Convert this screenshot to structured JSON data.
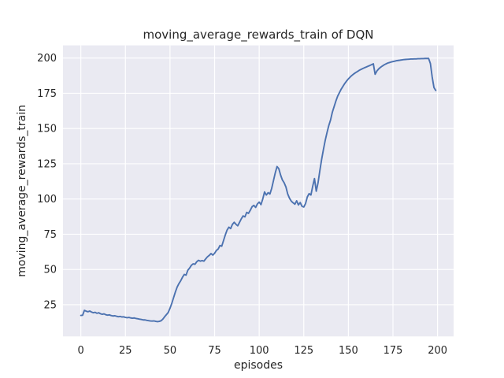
{
  "chart_data": {
    "type": "line",
    "title": "moving_average_rewards_train of DQN",
    "xlabel": "episodes",
    "ylabel": "moving_average_rewards_train",
    "xlim": [
      -10,
      209
    ],
    "ylim": [
      2.5,
      209
    ],
    "xticks": [
      0,
      25,
      50,
      75,
      100,
      125,
      150,
      175,
      200
    ],
    "yticks": [
      25,
      50,
      75,
      100,
      125,
      150,
      175,
      200
    ],
    "grid": true,
    "legend": false,
    "series": [
      {
        "name": "moving_average_rewards_train",
        "x_start": 0,
        "x_step": 1,
        "values": [
          17.4,
          17.5,
          21.0,
          20.4,
          20.0,
          20.5,
          19.8,
          19.3,
          19.6,
          18.9,
          19.3,
          18.6,
          18.2,
          18.5,
          17.9,
          17.6,
          17.8,
          17.3,
          17.0,
          17.2,
          16.8,
          16.5,
          16.7,
          16.3,
          16.4,
          16.0,
          15.8,
          16.0,
          15.6,
          15.4,
          15.6,
          15.2,
          15.0,
          14.7,
          14.5,
          14.2,
          14.2,
          13.9,
          13.7,
          13.5,
          13.4,
          13.5,
          13.2,
          13.0,
          13.2,
          13.6,
          14.8,
          16.5,
          18.0,
          19.5,
          22.5,
          26.0,
          30.0,
          34.0,
          37.5,
          40.0,
          42.0,
          44.5,
          46.5,
          46.0,
          49.5,
          51.0,
          53.0,
          54.0,
          53.7,
          55.5,
          56.5,
          55.9,
          56.3,
          55.9,
          57.5,
          59.0,
          60.0,
          61.3,
          60.2,
          61.5,
          63.5,
          64.5,
          67.0,
          66.5,
          70.5,
          74.5,
          78.0,
          80.0,
          79.0,
          82.0,
          83.5,
          82.0,
          81.0,
          83.5,
          86.0,
          88.0,
          87.3,
          90.5,
          89.8,
          92.0,
          94.5,
          95.5,
          94.0,
          96.5,
          97.8,
          96.0,
          100.0,
          105.0,
          102.8,
          104.5,
          103.5,
          107.5,
          113.0,
          118.5,
          123.0,
          121.5,
          117.0,
          113.5,
          111.5,
          108.5,
          103.5,
          100.5,
          98.5,
          97.3,
          96.3,
          98.7,
          95.8,
          97.5,
          94.8,
          94.3,
          96.8,
          101.5,
          103.8,
          102.8,
          109.0,
          114.5,
          105.5,
          111.5,
          120.0,
          128.0,
          135.0,
          141.5,
          147.0,
          152.0,
          156.0,
          161.5,
          165.5,
          169.5,
          173.0,
          175.5,
          178.0,
          180.0,
          182.0,
          183.7,
          185.2,
          186.5,
          187.7,
          188.7,
          189.6,
          190.4,
          191.2,
          191.9,
          192.5,
          193.1,
          193.6,
          194.2,
          194.7,
          195.3,
          195.9,
          188.5,
          190.8,
          192.3,
          193.4,
          194.3,
          195.1,
          195.8,
          196.4,
          196.8,
          197.2,
          197.5,
          197.8,
          198.1,
          198.3,
          198.5,
          198.7,
          198.9,
          199.0,
          199.1,
          199.2,
          199.3,
          199.3,
          199.4,
          199.4,
          199.5,
          199.5,
          199.6,
          199.6,
          199.7,
          199.7,
          199.7,
          196.0,
          186.5,
          179.0,
          177.0
        ]
      }
    ],
    "style": {
      "figure_bg": "#FFFFFF",
      "axes_bg": "#EAEAF2",
      "grid_color": "#FFFFFF",
      "line_color": "#4C72B0",
      "text_color": "#262626",
      "line_width": 1.9
    }
  }
}
